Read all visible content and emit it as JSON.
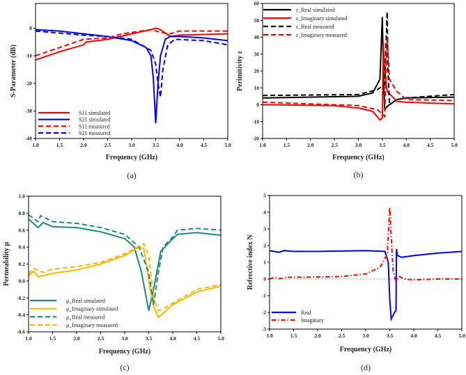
{
  "chart_data": [
    {
      "type": "line",
      "caption": "(a)",
      "xlabel": "Frequency (GHz)",
      "ylabel": "S-Parameter (dB)",
      "xlim": [
        1.0,
        5.0
      ],
      "ylim": [
        -40,
        9
      ],
      "xticks": [
        "1.0",
        "1.5",
        "2.0",
        "2.5",
        "3.0",
        "3.5",
        "4.0",
        "4.5",
        "5.0"
      ],
      "yticks": [
        "-40",
        "-30",
        "-20",
        "-10",
        "0"
      ],
      "legend_position": "bottom-left",
      "series": [
        {
          "name": "S11 simulated",
          "color": "#ff0000",
          "style": "solid",
          "x": [
            1.0,
            1.5,
            2.0,
            2.05,
            2.5,
            3.0,
            3.4,
            3.5,
            3.6,
            3.8,
            4.0,
            5.0
          ],
          "y": [
            -11.5,
            -8.5,
            -6,
            -5,
            -4,
            -2,
            -0.5,
            0,
            -0.5,
            -3,
            -2.5,
            -2
          ]
        },
        {
          "name": "S21 simulated",
          "color": "#0000ff",
          "style": "solid",
          "x": [
            1.0,
            1.5,
            2.0,
            2.5,
            3.0,
            3.3,
            3.4,
            3.45,
            3.5,
            3.55,
            3.6,
            3.7,
            3.8,
            4.0,
            4.5,
            5.0
          ],
          "y": [
            -0.5,
            -1,
            -2,
            -3,
            -4.5,
            -7,
            -10,
            -18,
            -34.5,
            -20,
            -10,
            -4,
            -3,
            -3,
            -3.5,
            -4.5
          ]
        },
        {
          "name": "S11 measured",
          "color": "#ff0000",
          "style": "dashed",
          "x": [
            1.0,
            1.5,
            2.0,
            2.5,
            2.8,
            3.4,
            3.5,
            3.6,
            3.8,
            4.0,
            5.0
          ],
          "y": [
            -10,
            -7,
            -4,
            -3.5,
            -2,
            -0.5,
            -1,
            -1.5,
            -2,
            -1,
            -1
          ]
        },
        {
          "name": "S21 measured",
          "color": "#0000ff",
          "style": "dashed",
          "x": [
            1.0,
            2.0,
            2.5,
            3.0,
            3.4,
            3.5,
            3.55,
            3.6,
            3.65,
            3.75,
            3.9,
            4.5,
            5.0
          ],
          "y": [
            -1,
            -2.5,
            -3,
            -4,
            -8,
            -13,
            -20,
            -25,
            -15,
            -6,
            -4,
            -4.5,
            -6
          ]
        }
      ]
    },
    {
      "type": "line",
      "caption": "(b)",
      "xlabel": "Frequency (GHz)",
      "ylabel": "Perimitivity ε",
      "xlim": [
        1.0,
        5.0
      ],
      "ylim": [
        -20,
        60
      ],
      "xticks": [
        "1.0",
        "1.5",
        "2.0",
        "2.5",
        "3.0",
        "3.5",
        "4.0",
        "4.5",
        "5.0"
      ],
      "yticks": [
        "-20",
        "-10",
        "0",
        "10",
        "20",
        "30",
        "40",
        "50",
        "60"
      ],
      "legend_position": "top-left",
      "series": [
        {
          "name": "ε_Real simulated",
          "color": "#000000",
          "style": "solid",
          "x": [
            1.0,
            3.0,
            3.3,
            3.45,
            3.5,
            3.52,
            3.55,
            3.6,
            3.8,
            4.0,
            5.0
          ],
          "y": [
            4,
            5,
            7,
            15,
            52,
            20,
            -3,
            -1,
            3,
            4,
            4.5
          ]
        },
        {
          "name": "ε_Imaginary simulated",
          "color": "#ff0000",
          "style": "solid",
          "x": [
            1.0,
            2.5,
            3.0,
            3.3,
            3.45,
            3.5,
            3.52,
            3.55,
            3.6,
            3.8,
            4.0,
            5.0
          ],
          "y": [
            0,
            -0.5,
            -2,
            -4,
            -9,
            -8,
            37,
            20,
            8,
            2,
            1.5,
            0.5
          ]
        },
        {
          "name": "ε_Real measured",
          "color": "#000000",
          "style": "dashed",
          "x": [
            1.0,
            3.0,
            3.4,
            3.55,
            3.6,
            3.62,
            3.65,
            3.8,
            4.0,
            5.0
          ],
          "y": [
            5.5,
            6,
            9,
            12,
            55,
            20,
            0,
            3,
            4,
            6
          ]
        },
        {
          "name": "ε_Imaginary measured",
          "color": "#ff0000",
          "style": "dashed",
          "x": [
            1.0,
            3.0,
            3.4,
            3.55,
            3.6,
            3.65,
            3.8,
            4.0,
            5.0
          ],
          "y": [
            1.5,
            -0.5,
            -3,
            -7,
            40,
            15,
            8,
            3,
            2.5
          ]
        }
      ]
    },
    {
      "type": "line",
      "caption": "(c)",
      "xlabel": "Frequency (GHz)",
      "ylabel": "Permeability μ",
      "xlim": [
        1.0,
        5.0
      ],
      "ylim": [
        -0.6,
        1.0
      ],
      "xticks": [
        "1.0",
        "1.5",
        "2.0",
        "2.5",
        "3.0",
        "3.5",
        "4.0",
        "4.5",
        "5.0"
      ],
      "yticks": [
        "-0.6",
        "-0.4",
        "-0.2",
        "0.0",
        "0.2",
        "0.4",
        "0.6",
        "0.8",
        "1.0"
      ],
      "legend_position": "bottom-left",
      "series": [
        {
          "name": "μ_Real simulated",
          "color": "#1a8a80",
          "style": "solid",
          "x": [
            1.0,
            1.2,
            1.3,
            1.5,
            2.0,
            2.5,
            3.0,
            3.2,
            3.35,
            3.5,
            3.6,
            3.75,
            4.0,
            4.1,
            4.5,
            5.0
          ],
          "y": [
            0.73,
            0.63,
            0.69,
            0.64,
            0.63,
            0.58,
            0.5,
            0.4,
            0.1,
            -0.35,
            -0.1,
            0.35,
            0.5,
            0.55,
            0.57,
            0.54
          ]
        },
        {
          "name": "μ_Imaginary simulated",
          "color": "#ffb800",
          "style": "solid",
          "x": [
            1.0,
            1.1,
            1.2,
            1.5,
            2.0,
            2.5,
            3.0,
            3.3,
            3.4,
            3.5,
            3.6,
            3.7,
            3.8,
            4.0,
            4.5,
            5.0
          ],
          "y": [
            0.05,
            0.12,
            0.05,
            0.09,
            0.13,
            0.2,
            0.3,
            0.4,
            0.38,
            0.0,
            -0.3,
            -0.43,
            -0.38,
            -0.28,
            -0.13,
            -0.06
          ]
        },
        {
          "name": "μ_Real measured",
          "color": "#1a8a80",
          "style": "dashed",
          "x": [
            1.0,
            1.2,
            1.25,
            1.5,
            2.0,
            2.5,
            3.0,
            3.3,
            3.5,
            3.6,
            3.7,
            3.8,
            4.0,
            4.1,
            4.5,
            5.0
          ],
          "y": [
            0.78,
            0.7,
            0.77,
            0.7,
            0.68,
            0.63,
            0.55,
            0.4,
            0.1,
            -0.28,
            0.1,
            0.4,
            0.52,
            0.6,
            0.62,
            0.6
          ]
        },
        {
          "name": "μ_Imaginary measured",
          "color": "#ffb800",
          "style": "dashed",
          "x": [
            1.0,
            1.1,
            1.3,
            1.5,
            2.0,
            2.5,
            3.0,
            3.4,
            3.5,
            3.6,
            3.7,
            3.8,
            4.0,
            4.5,
            5.0
          ],
          "y": [
            0.08,
            0.15,
            0.1,
            0.14,
            0.17,
            0.22,
            0.32,
            0.44,
            0.3,
            -0.2,
            -0.35,
            -0.33,
            -0.26,
            -0.1,
            -0.04
          ]
        }
      ]
    },
    {
      "type": "line",
      "caption": "(d)",
      "xlabel": "Frequency (GHz)",
      "ylabel": "Refrective index N",
      "xlim": [
        1.0,
        5.0
      ],
      "ylim": [
        -3,
        5
      ],
      "xticks": [
        "1.0",
        "1.5",
        "2.0",
        "2.5",
        "3.0",
        "3.5",
        "4.0",
        "4.5",
        "5.0"
      ],
      "yticks": [
        "-3",
        "-2",
        "-1",
        "0",
        "1",
        "2",
        "3",
        "4",
        "5"
      ],
      "legend_position": "bottom-left",
      "zero_line": true,
      "series": [
        {
          "name": "Real",
          "color": "#0000ff",
          "style": "solid",
          "x": [
            1.0,
            1.2,
            1.3,
            1.5,
            2.0,
            3.0,
            3.4,
            3.47,
            3.5,
            3.53,
            3.6,
            3.63,
            3.64,
            3.66,
            3.75,
            4.0,
            4.5,
            5.0
          ],
          "y": [
            1.7,
            1.6,
            1.7,
            1.65,
            1.65,
            1.7,
            1.65,
            1.0,
            -1.2,
            -2.4,
            -2.0,
            -1.9,
            1.8,
            1.4,
            1.3,
            1.4,
            1.55,
            1.65
          ]
        },
        {
          "name": "Imaginary",
          "color": "#ff0000",
          "style": "dashdot",
          "x": [
            1.0,
            1.1,
            1.2,
            1.4,
            2.0,
            2.5,
            3.0,
            3.3,
            3.45,
            3.5,
            3.53,
            3.57,
            3.62,
            3.7,
            3.8,
            4.0,
            4.5,
            5.0
          ],
          "y": [
            0,
            0.1,
            0.02,
            0.1,
            0.12,
            0.15,
            0.3,
            0.7,
            1.5,
            4.3,
            2.5,
            0.5,
            -0.1,
            0.15,
            0,
            -0.05,
            0,
            0
          ]
        }
      ]
    }
  ]
}
